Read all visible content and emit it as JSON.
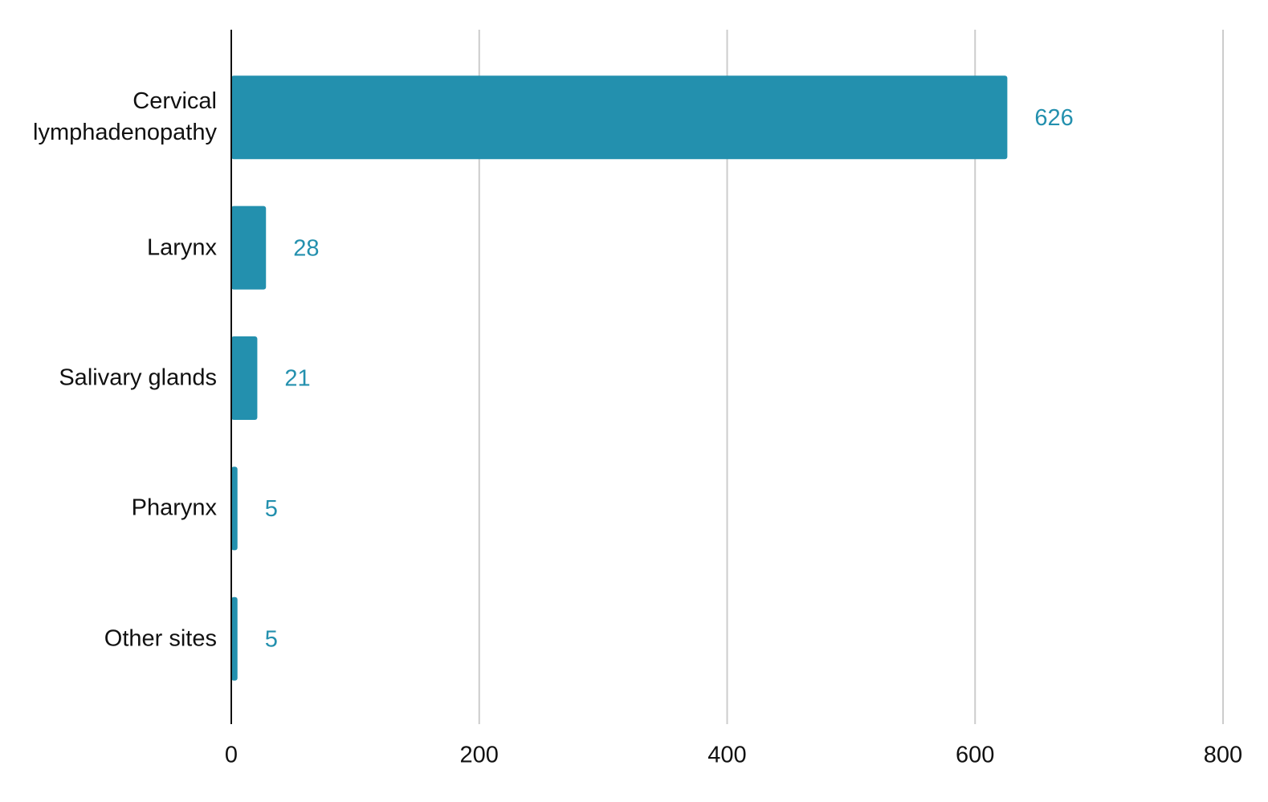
{
  "chart_data": {
    "type": "bar",
    "orientation": "horizontal",
    "categories": [
      "Cervical lymphadenopathy",
      "Larynx",
      "Salivary glands",
      "Pharynx",
      "Other sites"
    ],
    "values": [
      626,
      28,
      21,
      5,
      5
    ],
    "color": "#2390ae",
    "xlim": [
      0,
      800
    ],
    "xticks": [
      0,
      200,
      400,
      600,
      800
    ],
    "grid": true
  }
}
